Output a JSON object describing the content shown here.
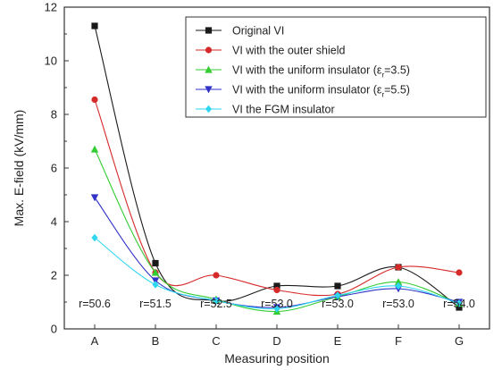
{
  "chart_data": {
    "type": "line",
    "title": "",
    "xlabel": "Measuring position",
    "ylabel": "Max. E-field (kV/mm)",
    "categories": [
      "A",
      "B",
      "C",
      "D",
      "E",
      "F",
      "G"
    ],
    "ylim": [
      0,
      12
    ],
    "yticks": [
      0,
      2,
      4,
      6,
      8,
      10,
      12
    ],
    "annotations": [
      "r=50.6",
      "r=51.5",
      "r=52.5",
      "r=53.0",
      "r=53.0",
      "r=53.0",
      "r=54.0"
    ],
    "legend_position": "top-right",
    "series": [
      {
        "name": "Original VI",
        "legend_main": "Original VI",
        "legend_sub": "",
        "legend_tail": "",
        "color": "#1a1a1a",
        "marker": "square",
        "values": [
          11.3,
          2.45,
          1.05,
          1.6,
          1.6,
          2.3,
          0.8
        ]
      },
      {
        "name": "VI with the outer shield",
        "legend_main": "VI with the outer shield",
        "legend_sub": "",
        "legend_tail": "",
        "color": "#d62a2a",
        "marker": "circle",
        "values": [
          8.55,
          2.1,
          2.0,
          1.45,
          1.3,
          2.3,
          2.1
        ]
      },
      {
        "name": "VI with the uniform insulator (εr=3.5)",
        "legend_main": "VI with the uniform insulator (ε",
        "legend_sub": "r",
        "legend_tail": "=3.5)",
        "color": "#33cc33",
        "marker": "triangle-up",
        "values": [
          6.7,
          2.1,
          1.1,
          0.65,
          1.2,
          1.75,
          0.95
        ]
      },
      {
        "name": "VI with the uniform insulator (εr=5.5)",
        "legend_main": "VI with the uniform insulator (ε",
        "legend_sub": "r",
        "legend_tail": "=5.5)",
        "color": "#3232c8",
        "marker": "triangle-down",
        "values": [
          4.9,
          1.8,
          1.05,
          0.8,
          1.2,
          1.5,
          1.0
        ]
      },
      {
        "name": "VI the FGM insulator",
        "legend_main": "VI the FGM insulator",
        "legend_sub": "",
        "legend_tail": "",
        "color": "#2fd6f0",
        "marker": "diamond",
        "values": [
          3.4,
          1.65,
          1.05,
          0.75,
          1.25,
          1.6,
          0.95
        ]
      }
    ]
  }
}
